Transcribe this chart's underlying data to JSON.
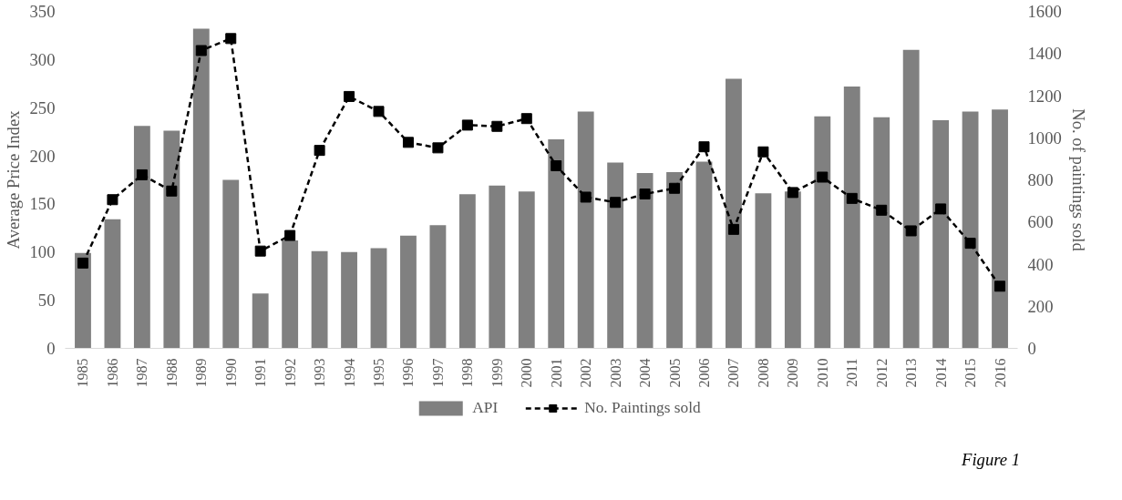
{
  "chart_data": {
    "type": "bar",
    "categories": [
      "1985",
      "1986",
      "1987",
      "1988",
      "1989",
      "1990",
      "1991",
      "1992",
      "1993",
      "1994",
      "1995",
      "1996",
      "1997",
      "1998",
      "1999",
      "2000",
      "2001",
      "2002",
      "2003",
      "2004",
      "2005",
      "2006",
      "2007",
      "2008",
      "2009",
      "2010",
      "2011",
      "2012",
      "2013",
      "2014",
      "2015",
      "2016"
    ],
    "series": [
      {
        "name": "API",
        "color": "#808080",
        "values": [
          99,
          134,
          231,
          226,
          332,
          175,
          57,
          112,
          101,
          100,
          104,
          117,
          128,
          160,
          169,
          163,
          217,
          246,
          193,
          182,
          183,
          194,
          280,
          161,
          163,
          241,
          272,
          240,
          310,
          237,
          246,
          248
        ]
      },
      {
        "name": "No. Paintings sold",
        "type": "line",
        "axis": "y2",
        "color": "#000000",
        "marker": "square",
        "line_style": "dashed",
        "values": [
          405,
          706,
          824,
          747,
          1414,
          1471,
          462,
          536,
          940,
          1196,
          1125,
          978,
          952,
          1060,
          1054,
          1091,
          867,
          718,
          693,
          733,
          760,
          957,
          565,
          933,
          740,
          813,
          712,
          656,
          558,
          662,
          499,
          295
        ]
      }
    ],
    "ylabel": "Average Price Index",
    "y2label": "No. of paintings sold",
    "ylim": [
      0,
      350
    ],
    "yticks": [
      0,
      50,
      100,
      150,
      200,
      250,
      300,
      350
    ],
    "y2lim": [
      0,
      1600
    ],
    "y2ticks": [
      0,
      200,
      400,
      600,
      800,
      1000,
      1200,
      1400,
      1600
    ],
    "grid": false,
    "legend": "bottom",
    "annotations": [
      "Figure 1"
    ]
  }
}
